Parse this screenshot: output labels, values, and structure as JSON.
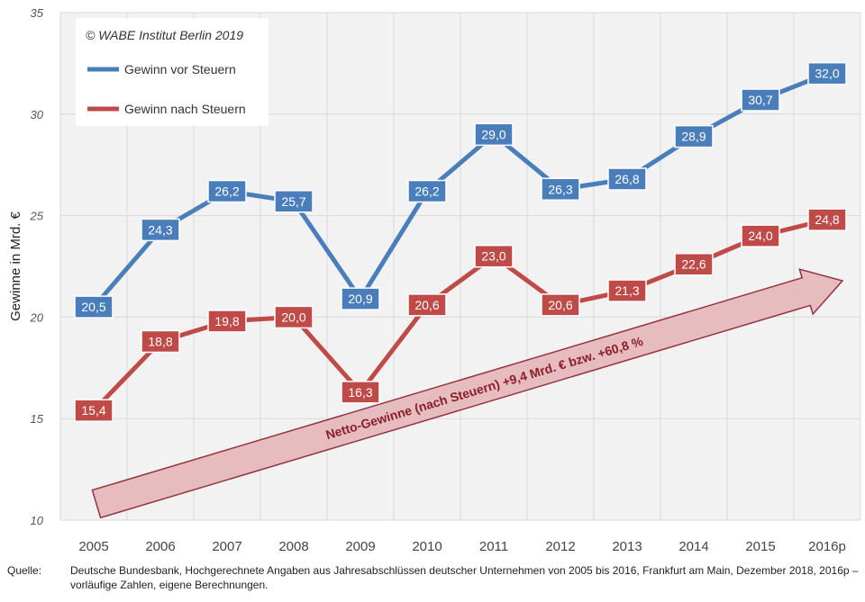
{
  "chart_data": {
    "type": "line",
    "categories": [
      "2005",
      "2006",
      "2007",
      "2008",
      "2009",
      "2010",
      "2011",
      "2012",
      "2013",
      "2014",
      "2015",
      "2016p"
    ],
    "series": [
      {
        "name": "Gewinn vor Steuern",
        "color": "#4a7ebb",
        "values": [
          20.5,
          24.3,
          26.2,
          25.7,
          20.9,
          26.2,
          29.0,
          26.3,
          26.8,
          28.9,
          30.7,
          32.0
        ],
        "labels": [
          "20,5",
          "24,3",
          "26,2",
          "25,7",
          "20,9",
          "26,2",
          "29,0",
          "26,3",
          "26,8",
          "28,9",
          "30,7",
          "32,0"
        ]
      },
      {
        "name": "Gewinn nach Steuern",
        "color": "#be4b48",
        "values": [
          15.4,
          18.8,
          19.8,
          20.0,
          16.3,
          20.6,
          23.0,
          20.6,
          21.3,
          22.6,
          24.0,
          24.8
        ],
        "labels": [
          "15,4",
          "18,8",
          "19,8",
          "20,0",
          "16,3",
          "20,6",
          "23,0",
          "20,6",
          "21,3",
          "22,6",
          "24,0",
          "24,8"
        ]
      }
    ],
    "ylabel": "Gewinne in Mrd. €",
    "ylim": [
      10,
      35
    ],
    "yticks": [
      10,
      15,
      20,
      25,
      30,
      35
    ],
    "grid": true,
    "legend_position": "top-left",
    "copyright": "© WABE Institut Berlin  2019",
    "annotation": "Netto-Gewinne (nach Steuern) +9,4 Mrd. € bzw. +60,8 %"
  },
  "source": {
    "label": "Quelle:",
    "text": "Deutsche Bundesbank, Hochgerechnete Angaben aus Jahresabschlüssen deutscher Unternehmen von 2005 bis 2016, Frankfurt am Main, Dezember 2018, 2016p – vorläufige Zahlen, eigene Berechnungen."
  }
}
